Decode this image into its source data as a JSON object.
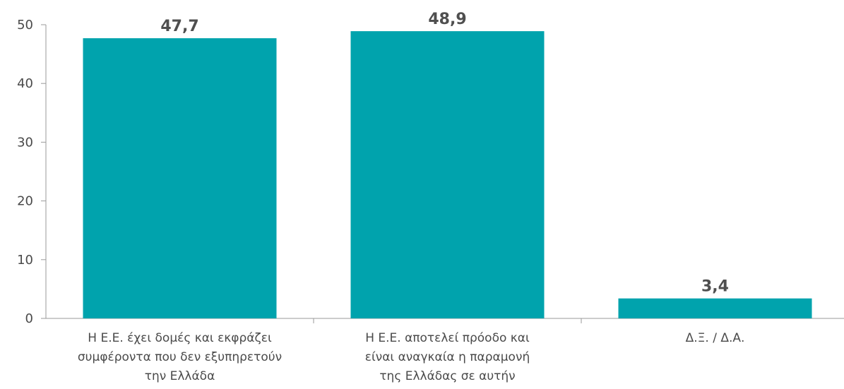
{
  "chart_data": {
    "type": "bar",
    "categories": [
      [
        "Η Ε.Ε. έχει δομές και εκφράζει",
        "συμφέροντα που δεν εξυπηρετούν",
        "την Ελλάδα"
      ],
      [
        "Η Ε.Ε. αποτελεί πρόοδο και",
        "είναι αναγκαία η παραμονή",
        "της Ελλάδας σε αυτήν"
      ],
      [
        "Δ.Ξ. / Δ.Α."
      ]
    ],
    "values": [
      47.7,
      48.9,
      3.4
    ],
    "value_labels": [
      "47,7",
      "48,9",
      "3,4"
    ],
    "yticks": [
      0,
      10,
      20,
      30,
      40,
      50
    ],
    "ylim": [
      0,
      50
    ],
    "grid": false,
    "bar_color": "#00a3ad",
    "title": "",
    "xlabel": "",
    "ylabel": ""
  }
}
